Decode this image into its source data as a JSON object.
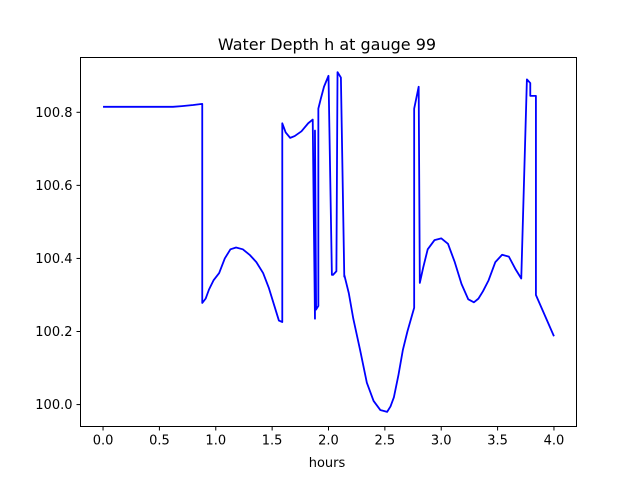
{
  "chart_data": {
    "type": "line",
    "title": "Water Depth h at gauge 99",
    "xlabel": "hours",
    "ylabel": "",
    "xlim": [
      -0.2,
      4.2
    ],
    "ylim": [
      99.94,
      100.95
    ],
    "xticks": [
      0.0,
      0.5,
      1.0,
      1.5,
      2.0,
      2.5,
      3.0,
      3.5,
      4.0
    ],
    "xtick_labels": [
      "0.0",
      "0.5",
      "1.0",
      "1.5",
      "2.0",
      "2.5",
      "3.0",
      "3.5",
      "4.0"
    ],
    "yticks": [
      100.0,
      100.2,
      100.4,
      100.6,
      100.8
    ],
    "ytick_labels": [
      "100.0",
      "100.2",
      "100.4",
      "100.6",
      "100.8"
    ],
    "grid": false,
    "legend": "none",
    "series": [
      {
        "color": "#0000ff",
        "x": [
          0.0,
          0.25,
          0.5,
          0.62,
          0.7,
          0.8,
          0.88,
          0.88,
          0.91,
          0.94,
          0.98,
          1.03,
          1.08,
          1.13,
          1.18,
          1.24,
          1.3,
          1.36,
          1.42,
          1.47,
          1.52,
          1.56,
          1.59,
          1.59,
          1.62,
          1.66,
          1.7,
          1.76,
          1.82,
          1.86,
          1.87,
          1.88,
          1.88,
          1.89,
          1.91,
          1.91,
          1.93,
          1.96,
          2.0,
          2.03,
          2.04,
          2.07,
          2.08,
          2.11,
          2.14,
          2.14,
          2.18,
          2.22,
          2.28,
          2.34,
          2.4,
          2.46,
          2.52,
          2.55,
          2.58,
          2.62,
          2.66,
          2.7,
          2.76,
          2.76,
          2.8,
          2.81,
          2.84,
          2.88,
          2.94,
          3.0,
          3.06,
          3.12,
          3.18,
          3.24,
          3.29,
          3.33,
          3.37,
          3.42,
          3.48,
          3.54,
          3.6,
          3.66,
          3.71,
          3.76,
          3.79,
          3.79,
          3.84,
          3.84,
          4.0
        ],
        "y": [
          100.815,
          100.815,
          100.815,
          100.815,
          100.817,
          100.82,
          100.823,
          100.278,
          100.29,
          100.315,
          100.34,
          100.36,
          100.4,
          100.425,
          100.43,
          100.425,
          100.41,
          100.39,
          100.36,
          100.32,
          100.27,
          100.23,
          100.226,
          100.77,
          100.745,
          100.73,
          100.735,
          100.748,
          100.77,
          100.78,
          100.5,
          100.235,
          100.75,
          100.26,
          100.27,
          100.81,
          100.835,
          100.87,
          100.9,
          100.355,
          100.355,
          100.365,
          100.91,
          100.895,
          100.35,
          100.355,
          100.305,
          100.235,
          100.15,
          100.06,
          100.01,
          99.985,
          99.98,
          99.995,
          100.02,
          100.08,
          100.15,
          100.2,
          100.265,
          100.81,
          100.87,
          100.333,
          100.375,
          100.425,
          100.45,
          100.455,
          100.44,
          100.39,
          100.33,
          100.288,
          100.28,
          100.29,
          100.31,
          100.34,
          100.39,
          100.41,
          100.405,
          100.37,
          100.345,
          100.89,
          100.88,
          100.845,
          100.845,
          100.3,
          100.187
        ]
      }
    ]
  }
}
